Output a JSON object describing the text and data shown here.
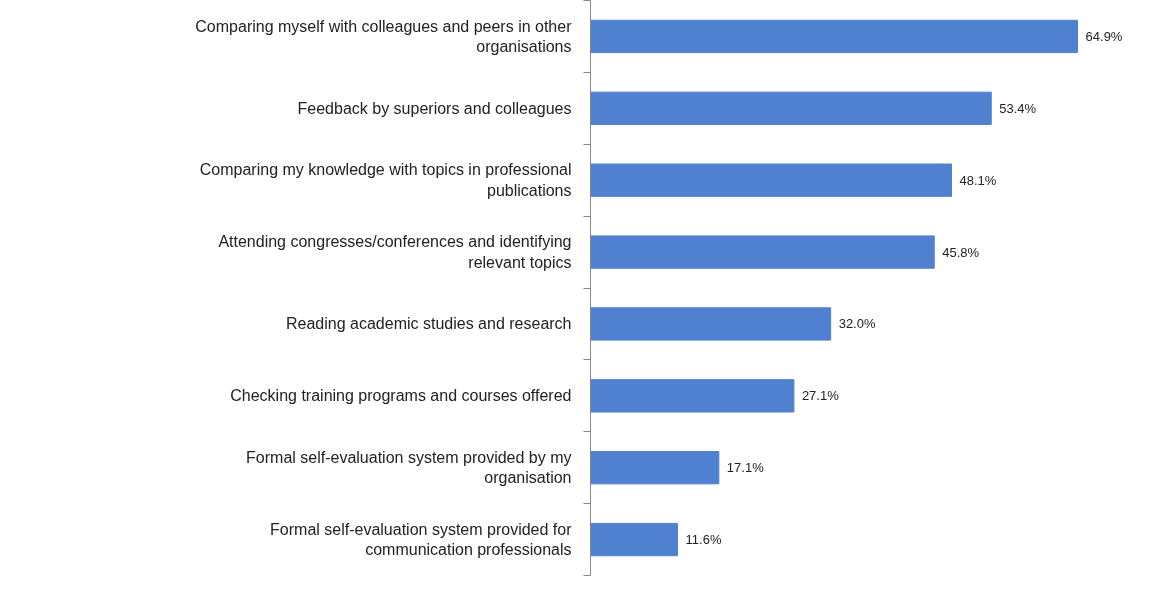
{
  "chart_data": {
    "type": "bar",
    "orientation": "horizontal",
    "categories": [
      "Comparing myself with colleagues and peers in other organisations",
      "Feedback by superiors and colleagues",
      "Comparing my knowledge with topics in professional publications",
      "Attending congresses/conferences and identifying relevant topics",
      "Reading academic studies and research",
      "Checking training programs and courses offered",
      "Formal self-evaluation system provided by my organisation",
      "Formal self-evaluation system provided for communication professionals"
    ],
    "values": [
      64.9,
      53.4,
      48.1,
      45.8,
      32.0,
      27.1,
      17.1,
      11.6
    ],
    "value_labels": [
      "64.9%",
      "53.4%",
      "48.1%",
      "45.8%",
      "32.0%",
      "27.1%",
      "17.1%",
      "11.6%"
    ],
    "color": "#4f81d0",
    "grid": false
  }
}
